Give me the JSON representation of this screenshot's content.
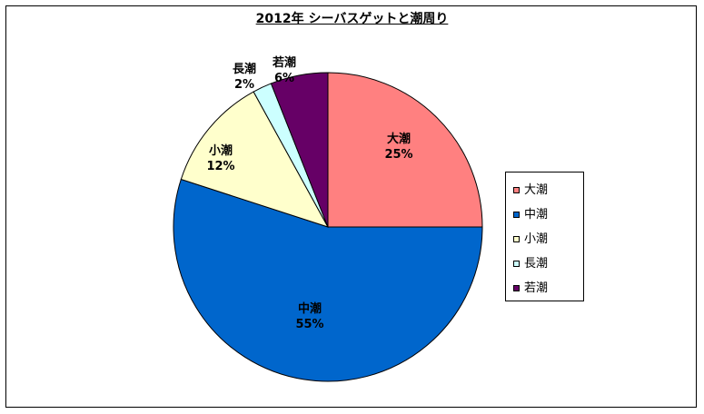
{
  "chart_data": {
    "type": "pie",
    "title": "2012年 シーバスゲットと潮周り",
    "categories": [
      "大潮",
      "中潮",
      "小潮",
      "長潮",
      "若潮"
    ],
    "values": [
      25,
      55,
      12,
      2,
      6
    ],
    "value_labels": [
      "25%",
      "55%",
      "12%",
      "2%",
      "6%"
    ],
    "colors": [
      "#FF8080",
      "#0066CC",
      "#FFFFCC",
      "#CCFFFF",
      "#660066"
    ],
    "legend": "right"
  }
}
